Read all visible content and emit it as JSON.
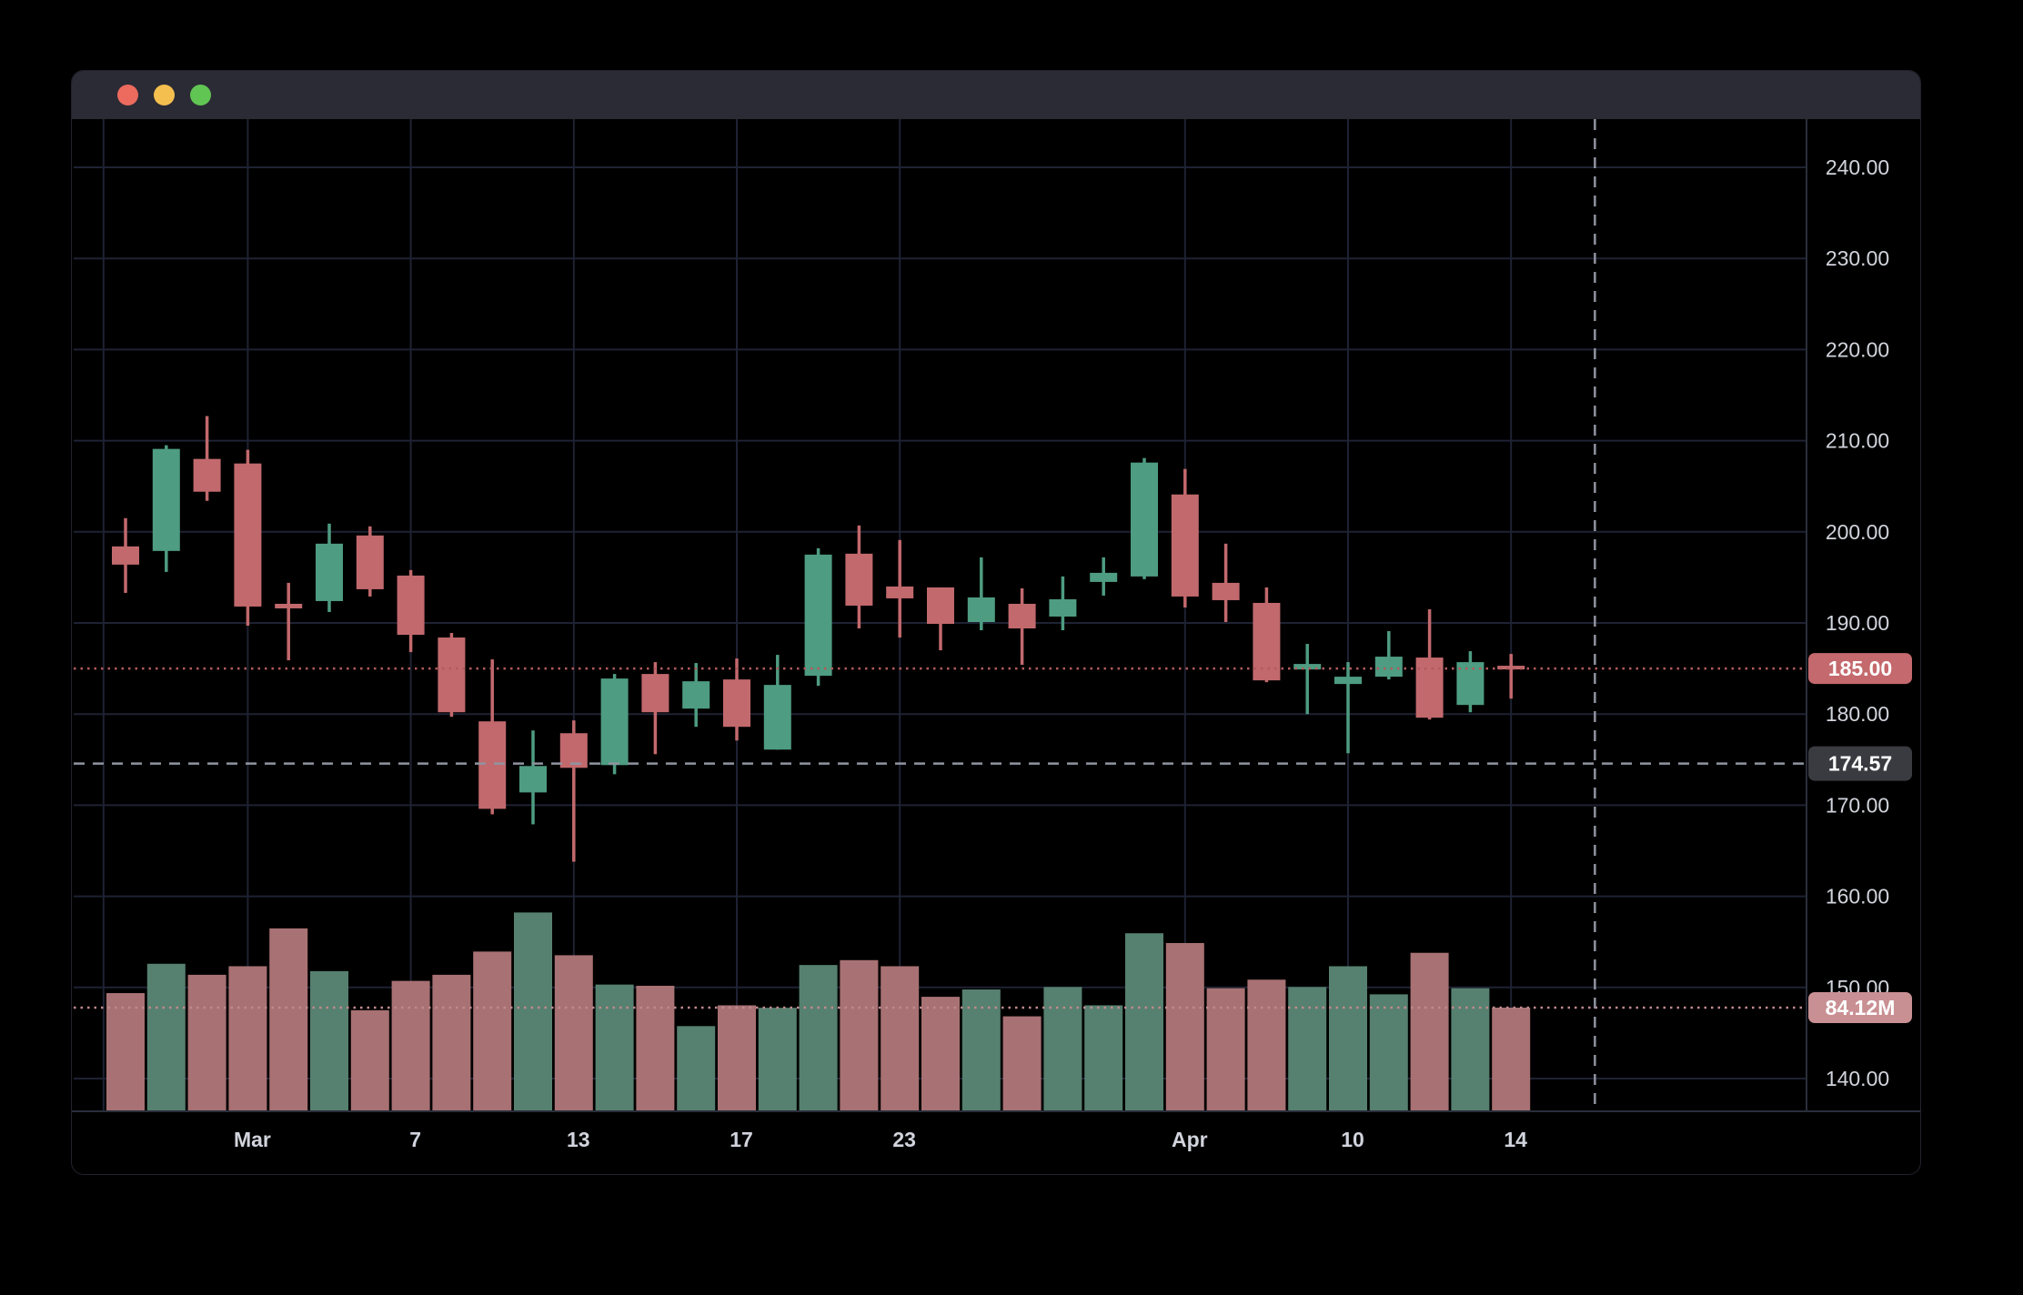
{
  "window": {
    "titlebar": {
      "close_label": "close",
      "minimize_label": "minimize",
      "zoom_label": "zoom"
    }
  },
  "colors": {
    "background": "#000000",
    "titlebar_bg": "#2b2b35",
    "traffic_red": "#ec6a5e",
    "traffic_yellow": "#f5bf4f",
    "traffic_green": "#61c554",
    "grid": "#1e2233",
    "axis_border": "#2a2e3b",
    "axis_text": "#d1d4dc",
    "candle_up": "#4e9c81",
    "candle_down": "#c2696d",
    "volume_up": "#56806f",
    "volume_down": "#a87173",
    "last_price_line": "#b25a5e",
    "last_price_badge_bg": "#c4696d",
    "crosshair": "#9094a0",
    "crosshair_badge_bg": "#3a3b40",
    "volume_line": "#c08a8e",
    "volume_badge_bg": "#c99094",
    "badge_text": "#ffffff"
  },
  "chart_data": {
    "type": "candlestick",
    "has_volume_pane": true,
    "volume_unit": "M",
    "legend_position": "none",
    "grid": "on",
    "y_axis_side": "right",
    "ylim": [
      138,
      245
    ],
    "y_ticks": [
      {
        "price": 240,
        "label": "240.00"
      },
      {
        "price": 230,
        "label": "230.00"
      },
      {
        "price": 220,
        "label": "220.00"
      },
      {
        "price": 210,
        "label": "210.00"
      },
      {
        "price": 200,
        "label": "200.00"
      },
      {
        "price": 190,
        "label": "190.00"
      },
      {
        "price": 180,
        "label": "180.00"
      },
      {
        "price": 170,
        "label": "170.00"
      },
      {
        "price": 160,
        "label": "160.00"
      },
      {
        "price": 150,
        "label": "150.00"
      },
      {
        "price": 140,
        "label": "140.00"
      }
    ],
    "x_ticks": [
      {
        "index": -0.54,
        "label": "",
        "bold": false
      },
      {
        "index": 3,
        "label": "Mar",
        "bold": true
      },
      {
        "index": 7,
        "label": "7",
        "bold": false
      },
      {
        "index": 11,
        "label": "13",
        "bold": false
      },
      {
        "index": 15,
        "label": "17",
        "bold": false
      },
      {
        "index": 19,
        "label": "23",
        "bold": false
      },
      {
        "index": 26,
        "label": "Apr",
        "bold": true
      },
      {
        "index": 30,
        "label": "10",
        "bold": false
      },
      {
        "index": 34,
        "label": "14",
        "bold": false
      }
    ],
    "candles": [
      {
        "o": 198.4,
        "h": 201.5,
        "l": 193.3,
        "c": 196.4,
        "v": 96
      },
      {
        "o": 197.9,
        "h": 209.5,
        "l": 195.6,
        "c": 209.1,
        "v": 120
      },
      {
        "o": 208.0,
        "h": 212.7,
        "l": 203.4,
        "c": 204.4,
        "v": 111
      },
      {
        "o": 207.5,
        "h": 209.0,
        "l": 189.7,
        "c": 191.8,
        "v": 118
      },
      {
        "o": 192.1,
        "h": 194.4,
        "l": 185.9,
        "c": 191.6,
        "v": 149
      },
      {
        "o": 192.4,
        "h": 200.9,
        "l": 191.2,
        "c": 198.7,
        "v": 114
      },
      {
        "o": 199.6,
        "h": 200.6,
        "l": 192.9,
        "c": 193.7,
        "v": 82
      },
      {
        "o": 195.2,
        "h": 195.8,
        "l": 186.8,
        "c": 188.7,
        "v": 106
      },
      {
        "o": 188.4,
        "h": 188.9,
        "l": 179.7,
        "c": 180.2,
        "v": 111
      },
      {
        "o": 179.2,
        "h": 186.0,
        "l": 169.0,
        "c": 169.6,
        "v": 130
      },
      {
        "o": 171.4,
        "h": 178.2,
        "l": 167.9,
        "c": 174.3,
        "v": 162
      },
      {
        "o": 177.9,
        "h": 179.3,
        "l": 163.8,
        "c": 174.1,
        "v": 127
      },
      {
        "o": 174.4,
        "h": 184.4,
        "l": 173.4,
        "c": 183.9,
        "v": 103
      },
      {
        "o": 184.4,
        "h": 185.7,
        "l": 175.6,
        "c": 180.2,
        "v": 102
      },
      {
        "o": 180.6,
        "h": 185.6,
        "l": 178.6,
        "c": 183.6,
        "v": 69
      },
      {
        "o": 183.8,
        "h": 186.1,
        "l": 177.1,
        "c": 178.6,
        "v": 86
      },
      {
        "o": 176.1,
        "h": 186.5,
        "l": 176.1,
        "c": 183.2,
        "v": 84
      },
      {
        "o": 184.2,
        "h": 198.2,
        "l": 183.1,
        "c": 197.5,
        "v": 119
      },
      {
        "o": 197.6,
        "h": 200.7,
        "l": 189.4,
        "c": 191.9,
        "v": 123
      },
      {
        "o": 194.0,
        "h": 199.1,
        "l": 188.4,
        "c": 192.7,
        "v": 118
      },
      {
        "o": 193.9,
        "h": 193.9,
        "l": 187.0,
        "c": 189.9,
        "v": 93
      },
      {
        "o": 190.1,
        "h": 197.2,
        "l": 189.2,
        "c": 192.8,
        "v": 99
      },
      {
        "o": 192.1,
        "h": 193.8,
        "l": 185.4,
        "c": 189.4,
        "v": 77
      },
      {
        "o": 190.7,
        "h": 195.1,
        "l": 189.2,
        "c": 192.6,
        "v": 101
      },
      {
        "o": 194.5,
        "h": 197.2,
        "l": 193.0,
        "c": 195.5,
        "v": 86
      },
      {
        "o": 195.1,
        "h": 208.1,
        "l": 194.8,
        "c": 207.6,
        "v": 145
      },
      {
        "o": 204.1,
        "h": 206.9,
        "l": 191.7,
        "c": 192.9,
        "v": 137
      },
      {
        "o": 194.4,
        "h": 198.7,
        "l": 190.1,
        "c": 192.5,
        "v": 100
      },
      {
        "o": 192.2,
        "h": 193.9,
        "l": 183.5,
        "c": 183.7,
        "v": 107
      },
      {
        "o": 184.9,
        "h": 187.7,
        "l": 180.0,
        "c": 185.5,
        "v": 101
      },
      {
        "o": 183.3,
        "h": 185.7,
        "l": 175.7,
        "c": 184.1,
        "v": 118
      },
      {
        "o": 184.1,
        "h": 189.1,
        "l": 183.8,
        "c": 186.3,
        "v": 95
      },
      {
        "o": 186.2,
        "h": 191.5,
        "l": 179.4,
        "c": 179.6,
        "v": 129
      },
      {
        "o": 181.0,
        "h": 186.9,
        "l": 180.2,
        "c": 185.7,
        "v": 100
      },
      {
        "o": 185.3,
        "h": 186.6,
        "l": 181.7,
        "c": 185.0,
        "v": 84.12
      }
    ],
    "last_price": {
      "value": 185.0,
      "label": "185.00",
      "direction": "down"
    },
    "last_volume": {
      "value": 84.12,
      "label": "84.12M"
    },
    "crosshair": {
      "price": 174.57,
      "label": "174.57",
      "x_fraction": 0.878
    }
  }
}
